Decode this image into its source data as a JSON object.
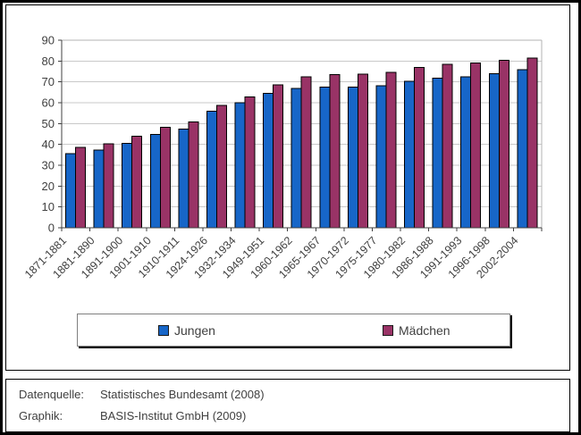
{
  "chart_data": {
    "type": "bar",
    "title": "",
    "xlabel": "",
    "ylabel": "",
    "ylim": [
      0,
      90
    ],
    "ytick_step": 10,
    "grid": true,
    "legend_position": "bottom",
    "categories": [
      "1871-1881",
      "1881-1890",
      "1891-1900",
      "1901-1910",
      "1910-1911",
      "1924-1926",
      "1932-1934",
      "1949-1951",
      "1960-1962",
      "1965-1967",
      "1970-1972",
      "1975-1977",
      "1980-1982",
      "1986-1988",
      "1991-1993",
      "1996-1998",
      "2002-2004"
    ],
    "series": [
      {
        "name": "Jungen",
        "color": "#1766C8",
        "values": [
          35.6,
          37.2,
          40.6,
          44.8,
          47.4,
          56.0,
          59.9,
          64.6,
          66.9,
          67.6,
          67.4,
          68.1,
          70.2,
          71.8,
          72.5,
          74.0,
          75.9
        ]
      },
      {
        "name": "Mädchen",
        "color": "#993366",
        "values": [
          38.5,
          40.2,
          44.0,
          48.3,
          50.7,
          58.8,
          62.8,
          68.5,
          72.4,
          73.6,
          73.8,
          74.5,
          76.9,
          78.4,
          79.0,
          80.3,
          81.5
        ]
      }
    ],
    "colors": {
      "bar_stroke": "#000000",
      "grid": "#c9c9c9",
      "plot_border": "#b3b3b3",
      "axis": "#404040",
      "text": "#404040"
    }
  },
  "legend": {
    "items": [
      {
        "label": "Jungen",
        "color": "#1766C8"
      },
      {
        "label": "Mädchen",
        "color": "#993366"
      }
    ]
  },
  "footer": {
    "rows": [
      {
        "label": "Datenquelle:",
        "value": "Statistisches Bundesamt (2008)"
      },
      {
        "label": "Graphik:",
        "value": "BASIS-Institut GmbH (2009)"
      }
    ]
  }
}
